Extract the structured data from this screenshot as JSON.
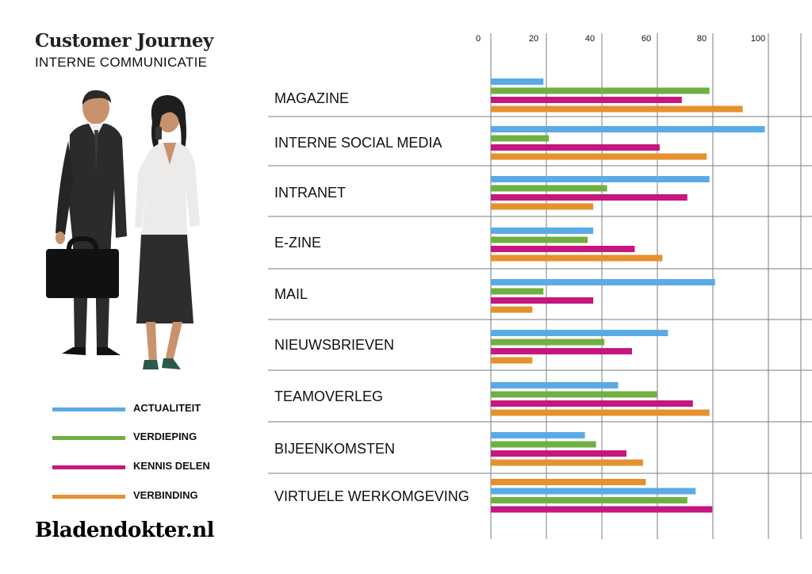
{
  "header": {
    "title": "Customer Journey",
    "subtitle": "INTERNE COMMUNICATIE"
  },
  "brand": "Bladendokter.nl",
  "illustration": {
    "description_icon": "business-people-icon",
    "colors": {
      "suit": "#2b2b2b",
      "jacket": "#ecebea",
      "skin": "#c8936c"
    }
  },
  "chart_data": {
    "type": "bar",
    "orientation": "horizontal",
    "title": "",
    "xlabel": "",
    "ylabel": "",
    "xlim": [
      0,
      100
    ],
    "x_ticks": [
      "0",
      "20",
      "40",
      "60",
      "80",
      "100"
    ],
    "grid": true,
    "legend_position": "bottom-left",
    "categories": [
      "MAGAZINE",
      "INTERNE SOCIAL MEDIA",
      "INTRANET",
      "E-ZINE",
      "MAIL",
      "NIEUWSBRIEVEN",
      "TEAMOVERLEG",
      "BIJEENKOMSTEN",
      "VIRTUELE WERKOMGEVING"
    ],
    "series": [
      {
        "name": "ACTUALITEIT",
        "color": "#5aaae6",
        "values": [
          19,
          99,
          79,
          37,
          81,
          64,
          46,
          34,
          74
        ]
      },
      {
        "name": "VERDIEPING",
        "color": "#70b043",
        "values": [
          79,
          21,
          42,
          35,
          19,
          41,
          60,
          38,
          71
        ]
      },
      {
        "name": "KENNIS DELEN",
        "color": "#c5177e",
        "values": [
          69,
          61,
          71,
          52,
          37,
          51,
          73,
          49,
          80
        ]
      },
      {
        "name": "VERBINDING",
        "color": "#e4912e",
        "values": [
          91,
          78,
          37,
          62,
          15,
          15,
          79,
          55,
          56
        ]
      }
    ],
    "order_note_last_category": [
      "VERBINDING",
      "ACTUALITEIT",
      "VERDIEPING",
      "KENNIS DELEN"
    ]
  }
}
